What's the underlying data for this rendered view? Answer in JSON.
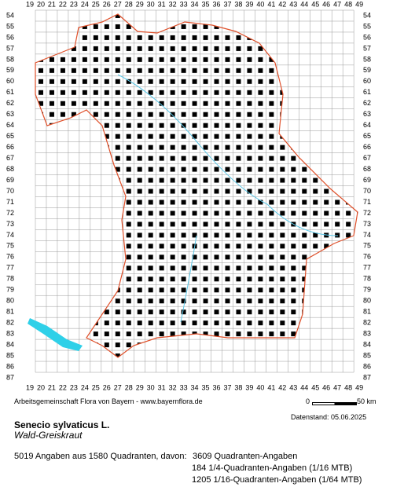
{
  "map": {
    "columns": [
      "19",
      "20",
      "21",
      "22",
      "23",
      "24",
      "25",
      "26",
      "27",
      "28",
      "29",
      "30",
      "31",
      "32",
      "33",
      "34",
      "35",
      "36",
      "37",
      "38",
      "39",
      "40",
      "41",
      "42",
      "43",
      "44",
      "45",
      "46",
      "47",
      "48",
      "49"
    ],
    "rows": [
      "54",
      "55",
      "56",
      "57",
      "58",
      "59",
      "60",
      "61",
      "62",
      "63",
      "64",
      "65",
      "66",
      "67",
      "68",
      "69",
      "70",
      "71",
      "72",
      "73",
      "74",
      "75",
      "76",
      "77",
      "78",
      "79",
      "80",
      "81",
      "82",
      "83",
      "84",
      "85",
      "86",
      "87"
    ]
  },
  "footer": {
    "credit": "Arbeitsgemeinschaft Flora von Bayern - www.bayernflora.de",
    "scale_start": "0",
    "scale_end": "50 km",
    "date": "Datenstand: 05.06.2025"
  },
  "species": {
    "name": "Senecio sylvaticus L.",
    "common_name": "Wald-Greiskraut"
  },
  "stats": {
    "total": "5019 Angaben aus 1580 Quadranten, davon:",
    "line1": "3609 Quadranten-Angaben",
    "line2": "184 1/4-Quadranten-Angaben (1/16 MTB)",
    "line3": "1205 1/16-Quadranten-Angaben (1/64 MTB)"
  }
}
